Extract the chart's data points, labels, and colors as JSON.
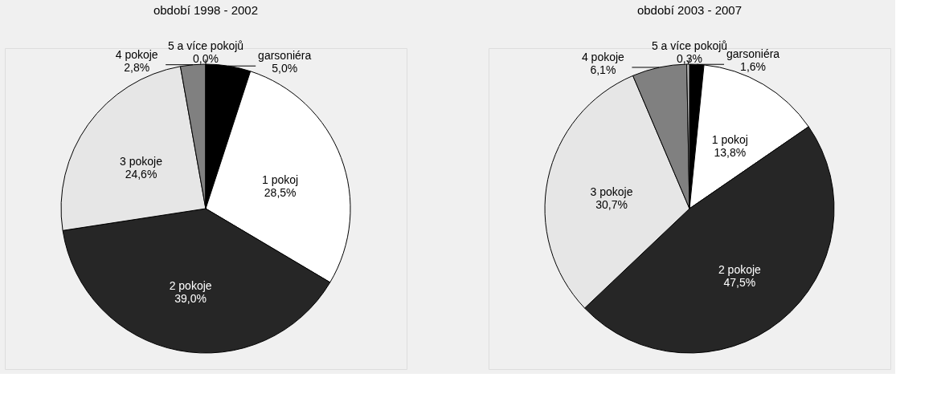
{
  "chart_data": [
    {
      "type": "pie",
      "title": "období 1998 - 2002",
      "categories": [
        "garsoniéra",
        "1 pokoj",
        "2 pokoje",
        "3 pokoje",
        "4 pokoje",
        "5 a více pokojů"
      ],
      "values": [
        5.0,
        28.5,
        39.0,
        24.6,
        2.8,
        0.0
      ],
      "value_labels": [
        "5,0%",
        "28,5%",
        "39,0%",
        "24,6%",
        "2,8%",
        "0,0%"
      ],
      "colors": [
        "#000000",
        "#ffffff",
        "#262626",
        "#e6e6e6",
        "#808080",
        "#bfbfbf"
      ],
      "legend": false
    },
    {
      "type": "pie",
      "title": "období 2003 - 2007",
      "categories": [
        "garsoniéra",
        "1 pokoj",
        "2 pokoje",
        "3 pokoje",
        "4 pokoje",
        "5 a více pokojů"
      ],
      "values": [
        1.6,
        13.8,
        47.5,
        30.7,
        6.1,
        0.3
      ],
      "value_labels": [
        "1,6%",
        "13,8%",
        "47,5%",
        "30,7%",
        "6,1%",
        "0,3%"
      ],
      "colors": [
        "#000000",
        "#ffffff",
        "#000000",
        "#e6e6e6",
        "#808080",
        "#bfbfbf"
      ],
      "legend": false
    }
  ]
}
